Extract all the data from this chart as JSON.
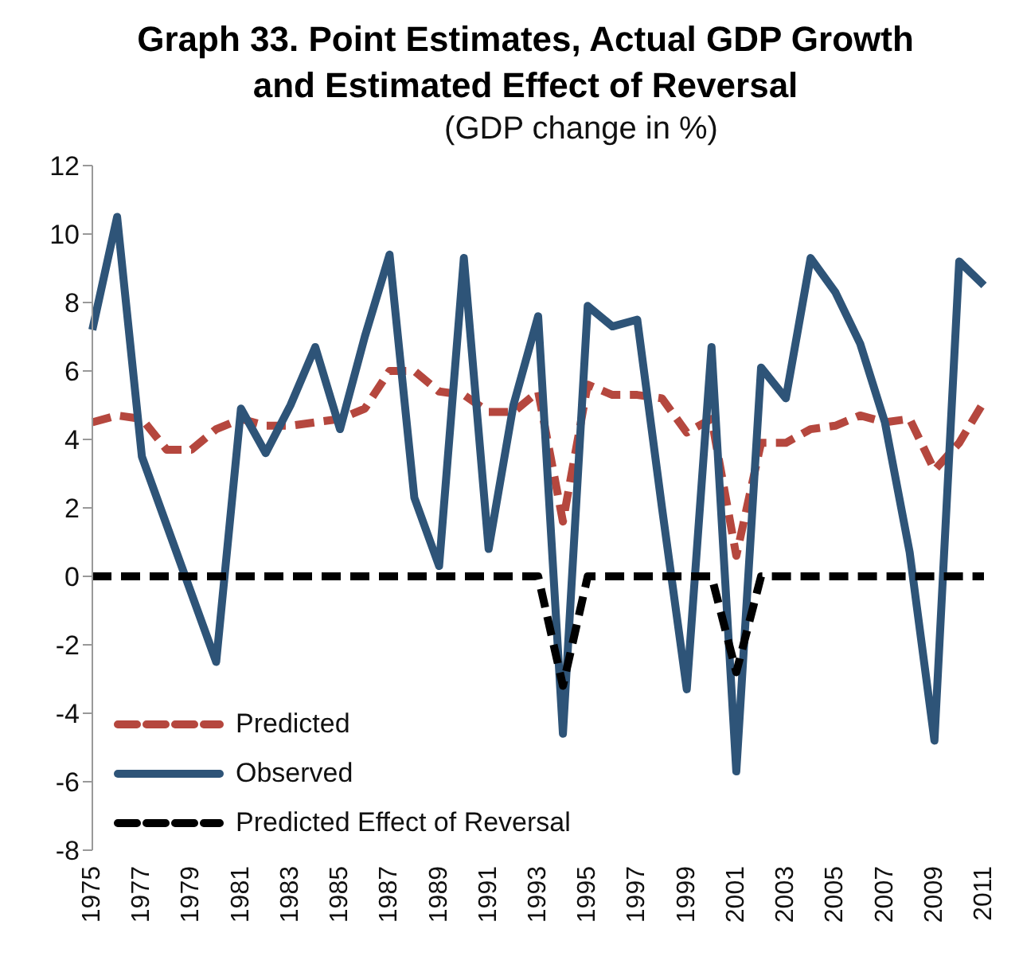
{
  "chart_data": {
    "type": "line",
    "title": "Graph 33. Point Estimates, Actual GDP Growth and Estimated Effect of Reversal",
    "subtitle": "(GDP change in %)",
    "categories": [
      "1975",
      null,
      "1977",
      null,
      "1979",
      null,
      "1981",
      null,
      "1983",
      null,
      "1985",
      null,
      "1987",
      null,
      "1989",
      null,
      "1991",
      null,
      "1993",
      null,
      "1995",
      null,
      "1997",
      null,
      "1999",
      null,
      "2001",
      null,
      "2003",
      null,
      "2005",
      null,
      "2007",
      null,
      "2009",
      null,
      "2011"
    ],
    "series": [
      {
        "name": "Predicted",
        "color": "#b5473e",
        "line_style": "dashed",
        "values": [
          4.5,
          4.7,
          4.6,
          3.7,
          3.7,
          4.3,
          4.6,
          4.4,
          4.4,
          4.5,
          4.6,
          4.9,
          6.0,
          6.0,
          5.4,
          5.3,
          4.8,
          4.8,
          5.4,
          1.6,
          5.6,
          5.3,
          5.3,
          5.2,
          4.2,
          4.6,
          0.6,
          3.9,
          3.9,
          4.3,
          4.4,
          4.7,
          4.5,
          4.6,
          3.1,
          3.9,
          5.1
        ]
      },
      {
        "name": "Observed",
        "color": "#2e5478",
        "line_style": "solid",
        "values": [
          7.2,
          10.5,
          3.5,
          1.5,
          -0.5,
          -2.5,
          4.9,
          3.6,
          5.0,
          6.7,
          4.3,
          7.0,
          9.4,
          2.3,
          0.3,
          9.3,
          0.8,
          5.0,
          7.6,
          -4.6,
          7.9,
          7.3,
          7.5,
          2.0,
          -3.3,
          6.7,
          -5.7,
          6.1,
          5.2,
          9.3,
          8.3,
          6.8,
          4.5,
          0.7,
          -4.8,
          9.2,
          8.5
        ]
      },
      {
        "name": "Predicted Effect of Reversal",
        "color": "#000000",
        "line_style": "dashed",
        "values": [
          0,
          0,
          0,
          0,
          0,
          0,
          0,
          0,
          0,
          0,
          0,
          0,
          0,
          0,
          0,
          0,
          0,
          0,
          0,
          -3.2,
          0,
          0,
          0,
          0,
          0,
          0,
          -2.8,
          0,
          0,
          0,
          0,
          0,
          0,
          0,
          0,
          0,
          0
        ]
      }
    ],
    "ylim": [
      -8,
      12
    ],
    "yticks": [
      -8,
      -6,
      -4,
      -2,
      0,
      2,
      4,
      6,
      8,
      10,
      12
    ],
    "grid": false,
    "legend": "bottom left",
    "marker": "none"
  }
}
